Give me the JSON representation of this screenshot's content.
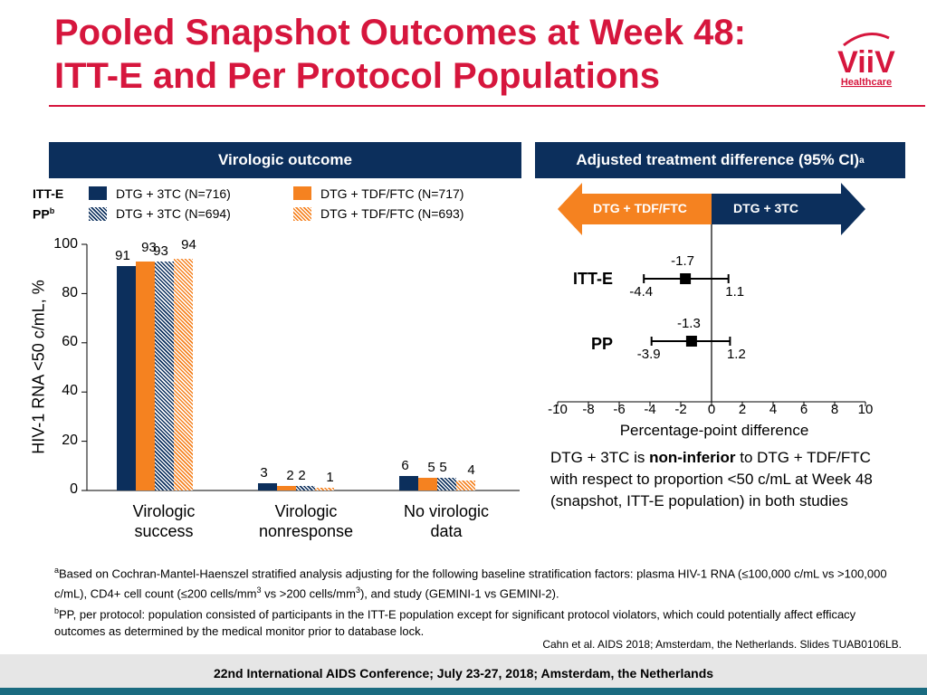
{
  "title": {
    "line1": "Pooled Snapshot Outcomes at Week 48:",
    "line2": "ITT-E and Per Protocol Populations"
  },
  "logo": {
    "brand": "ViiV",
    "sub": "Healthcare"
  },
  "colors": {
    "brand_red": "#d6163d",
    "navy": "#0c2f5c",
    "orange": "#f58220",
    "teal": "#1a6b80"
  },
  "panels": {
    "left_header": "Virologic outcome",
    "right_header": "Adjusted treatment difference (95% CI)",
    "right_header_sup": "a"
  },
  "legend": {
    "itte_label": "ITT-E",
    "pp_label": "PP",
    "pp_sup": "b",
    "itte_dtg3tc": "DTG + 3TC (N=716)",
    "itte_tdf": "DTG + TDF/FTC (N=717)",
    "pp_dtg3tc": "DTG + 3TC (N=694)",
    "pp_tdf": "DTG + TDF/FTC (N=693)"
  },
  "chart_data": [
    {
      "type": "bar",
      "title": "Virologic outcome",
      "ylabel": "HIV-1 RNA <50 c/mL, %",
      "xlabel": "",
      "ylim": [
        0,
        100
      ],
      "yticks": [
        "0",
        "20",
        "40",
        "60",
        "80",
        "100"
      ],
      "categories": [
        "Virologic success",
        "Virologic nonresponse",
        "No virologic data"
      ],
      "category_lines": [
        [
          "Virologic",
          "success"
        ],
        [
          "Virologic",
          "nonresponse"
        ],
        [
          "No virologic",
          "data"
        ]
      ],
      "series": [
        {
          "name": "ITT-E DTG + 3TC (N=716)",
          "values": [
            91,
            3,
            6
          ],
          "labels": [
            "91",
            "3",
            "6"
          ]
        },
        {
          "name": "ITT-E DTG + TDF/FTC (N=717)",
          "values": [
            93,
            2,
            5
          ],
          "labels": [
            "93",
            "2",
            "5"
          ]
        },
        {
          "name": "PP DTG + 3TC (N=694)",
          "values": [
            93,
            2,
            5
          ],
          "labels": [
            "93",
            "2",
            "5"
          ]
        },
        {
          "name": "PP DTG + TDF/FTC (N=693)",
          "values": [
            94,
            1,
            4
          ],
          "labels": [
            "94",
            "1",
            "4"
          ]
        }
      ]
    },
    {
      "type": "forest",
      "title": "Adjusted treatment difference (95% CI)",
      "xlabel": "Percentage-point difference",
      "xlim": [
        -10,
        10
      ],
      "xticks": [
        "-10",
        "-8",
        "-6",
        "-4",
        "-2",
        "0",
        "2",
        "4",
        "6",
        "8",
        "10"
      ],
      "arrow_left_label": "DTG + TDF/FTC",
      "arrow_right_label": "DTG + 3TC",
      "rows": [
        {
          "label": "ITT-E",
          "estimate": -1.7,
          "lower": -4.4,
          "upper": 1.1,
          "estimate_text": "-1.7",
          "lower_text": "-4.4",
          "upper_text": "1.1"
        },
        {
          "label": "PP",
          "estimate": -1.3,
          "lower": -3.9,
          "upper": 1.2,
          "estimate_text": "-1.3",
          "lower_text": "-3.9",
          "upper_text": "1.2"
        }
      ]
    }
  ],
  "conclusion": {
    "part1": "DTG + 3TC is ",
    "bold": "non-inferior",
    "part2": " to DTG + TDF/FTC with respect to proportion <50 c/mL at Week 48 (snapshot, ITT-E population) in both studies"
  },
  "footnotes": {
    "a_sup": "a",
    "a_text1": "Based on Cochran-Mantel-Haenszel stratified analysis adjusting for the following baseline stratification factors: plasma HIV-1 RNA (≤100,000 c/mL vs >100,000 c/mL), CD4+ cell count (≤200 cells/mm",
    "a_sup3a": "3",
    "a_text2": " vs >200 cells/mm",
    "a_sup3b": "3",
    "a_text3": "), and study (GEMINI-1 vs GEMINI-2).",
    "b_sup": "b",
    "b_text": "PP, per protocol: population consisted of participants in the ITT-E population except for significant protocol violators, which could potentially affect efficacy outcomes as determined by the medical monitor prior to database lock."
  },
  "citation": "Cahn et al. AIDS 2018; Amsterdam, the Netherlands. Slides TUAB0106LB.",
  "footer": "22nd International AIDS Conference; July 23-27, 2018; Amsterdam, the Netherlands"
}
